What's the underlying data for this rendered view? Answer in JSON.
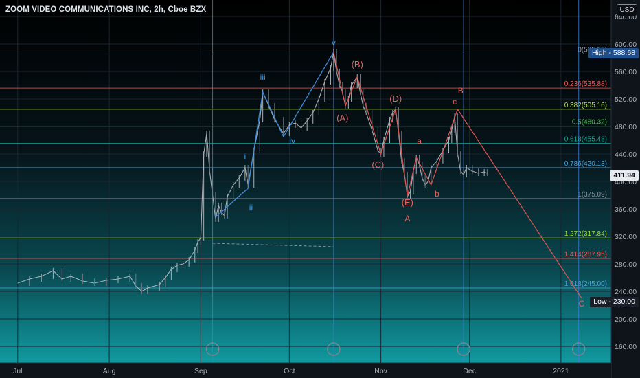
{
  "header": {
    "title": "ZOOM VIDEO COMMUNICATIONS INC, 2h, Cboe BZX",
    "currency": "USD"
  },
  "price_tags": {
    "high": "High - 588.68",
    "current": "411.94",
    "low": "Low - 230.00"
  },
  "chart_data": {
    "type": "line",
    "title": "ZOOM VIDEO COMMUNICATIONS INC, 2h, Cboe BZX",
    "ylim": [
      150,
      650
    ],
    "y_ticks": [
      160,
      200,
      240,
      280,
      320,
      360,
      400,
      440,
      480,
      520,
      560,
      600,
      640
    ],
    "x_ticks": [
      {
        "label": "Jul",
        "day": 0
      },
      {
        "label": "Aug",
        "day": 31
      },
      {
        "label": "Sep",
        "day": 62
      },
      {
        "label": "Oct",
        "day": 92
      },
      {
        "label": "Nov",
        "day": 123
      },
      {
        "label": "Dec",
        "day": 153
      },
      {
        "label": "2021",
        "day": 184
      }
    ],
    "xlim": [
      -6,
      201
    ],
    "price_path": [
      [
        0,
        252
      ],
      [
        4,
        258
      ],
      [
        8,
        262
      ],
      [
        12,
        270
      ],
      [
        15,
        258
      ],
      [
        18,
        262
      ],
      [
        22,
        255
      ],
      [
        26,
        252
      ],
      [
        30,
        256
      ],
      [
        34,
        258
      ],
      [
        38,
        262
      ],
      [
        40,
        248
      ],
      [
        42,
        240
      ],
      [
        44,
        245
      ],
      [
        48,
        250
      ],
      [
        50,
        260
      ],
      [
        52,
        272
      ],
      [
        54,
        278
      ],
      [
        56,
        280
      ],
      [
        58,
        286
      ],
      [
        60,
        300
      ],
      [
        61,
        312
      ],
      [
        62,
        318
      ],
      [
        63,
        440
      ],
      [
        64,
        470
      ],
      [
        65,
        415
      ],
      [
        66,
        380
      ],
      [
        67,
        345
      ],
      [
        68,
        365
      ],
      [
        69,
        355
      ],
      [
        70,
        350
      ],
      [
        71,
        378
      ],
      [
        73,
        395
      ],
      [
        75,
        405
      ],
      [
        77,
        420
      ],
      [
        78,
        395
      ],
      [
        80,
        445
      ],
      [
        82,
        490
      ],
      [
        83,
        530
      ],
      [
        85,
        510
      ],
      [
        87,
        490
      ],
      [
        90,
        470
      ],
      [
        92,
        482
      ],
      [
        94,
        485
      ],
      [
        96,
        478
      ],
      [
        98,
        488
      ],
      [
        100,
        500
      ],
      [
        102,
        520
      ],
      [
        104,
        545
      ],
      [
        106,
        565
      ],
      [
        107,
        588
      ],
      [
        108,
        560
      ],
      [
        109,
        540
      ],
      [
        110,
        530
      ],
      [
        111,
        510
      ],
      [
        112,
        520
      ],
      [
        113,
        540
      ],
      [
        115,
        552
      ],
      [
        116,
        530
      ],
      [
        117,
        510
      ],
      [
        118,
        500
      ],
      [
        120,
        475
      ],
      [
        122,
        445
      ],
      [
        123,
        440
      ],
      [
        124,
        460
      ],
      [
        126,
        490
      ],
      [
        127,
        500
      ],
      [
        128,
        505
      ],
      [
        129,
        470
      ],
      [
        130,
        430
      ],
      [
        131,
        410
      ],
      [
        132,
        378
      ],
      [
        133,
        385
      ],
      [
        134,
        415
      ],
      [
        135,
        435
      ],
      [
        136,
        425
      ],
      [
        137,
        405
      ],
      [
        138,
        395
      ],
      [
        139,
        400
      ],
      [
        140,
        420
      ],
      [
        142,
        430
      ],
      [
        144,
        445
      ],
      [
        146,
        460
      ],
      [
        147,
        475
      ],
      [
        148,
        495
      ],
      [
        149,
        440
      ],
      [
        150,
        415
      ],
      [
        151,
        410
      ],
      [
        152,
        420
      ],
      [
        154,
        415
      ],
      [
        156,
        412
      ],
      [
        158,
        414
      ],
      [
        159,
        411.94
      ]
    ],
    "fib_levels": [
      {
        "label": "0(585.55)",
        "value": 585.55,
        "color": "#9aa3ad"
      },
      {
        "label": "0.236(535.88)",
        "value": 535.88,
        "color": "#f05a55"
      },
      {
        "label": "0.382(505.16)",
        "value": 505.16,
        "color": "#b5e05a"
      },
      {
        "label": "0.5(480.32)",
        "value": 480.32,
        "color": "#57c35a"
      },
      {
        "label": "0.618(455.48)",
        "value": 455.48,
        "color": "#17a99a"
      },
      {
        "label": "0.786(420.13)",
        "value": 420.13,
        "color": "#4aa6e0"
      },
      {
        "label": "1(375.09)",
        "value": 375.09,
        "color": "#8b93a0"
      },
      {
        "label": "1.272(317.84)",
        "value": 317.84,
        "color": "#9bdd3b"
      },
      {
        "label": "1.414(287.95)",
        "value": 287.95,
        "color": "#f05a55"
      },
      {
        "label": "1.618(245.00)",
        "value": 245.0,
        "color": "#4aa6e0"
      }
    ],
    "blue_wave": {
      "points": [
        [
          67,
          348
        ],
        [
          78,
          390
        ],
        [
          83,
          530
        ],
        [
          90,
          465
        ],
        [
          107,
          588
        ]
      ],
      "labels": [
        {
          "text": "i",
          "day": 77,
          "value": 432
        },
        {
          "text": "ii",
          "day": 79,
          "value": 358
        },
        {
          "text": "iii",
          "day": 83,
          "value": 548
        },
        {
          "text": "iv",
          "day": 93,
          "value": 455
        },
        {
          "text": "v",
          "day": 107,
          "value": 598
        }
      ]
    },
    "red_wave": {
      "points": [
        [
          107,
          588
        ],
        [
          111,
          510
        ],
        [
          115,
          552
        ],
        [
          123,
          440
        ],
        [
          128,
          505
        ],
        [
          132,
          378
        ],
        [
          135,
          435
        ],
        [
          140,
          395
        ],
        [
          149,
          505
        ],
        [
          191,
          230
        ]
      ],
      "labels": [
        {
          "text": "(B)",
          "day": 115,
          "value": 566
        },
        {
          "text": "(A)",
          "day": 110,
          "value": 488
        },
        {
          "text": "(D)",
          "day": 128,
          "value": 516
        },
        {
          "text": "(C)",
          "day": 122,
          "value": 420
        },
        {
          "text": "(E)",
          "day": 132,
          "value": 365
        },
        {
          "text": "A",
          "day": 132,
          "value": 342
        },
        {
          "text": "a",
          "day": 136,
          "value": 455
        },
        {
          "text": "b",
          "day": 142,
          "value": 378
        },
        {
          "text": "c",
          "day": 148,
          "value": 512
        },
        {
          "text": "B",
          "day": 150,
          "value": 528
        },
        {
          "text": "C",
          "day": 191,
          "value": 218
        }
      ]
    },
    "vertical_markers": [
      66,
      107,
      151,
      190
    ],
    "resistance_line": 535.88,
    "grid": true
  }
}
